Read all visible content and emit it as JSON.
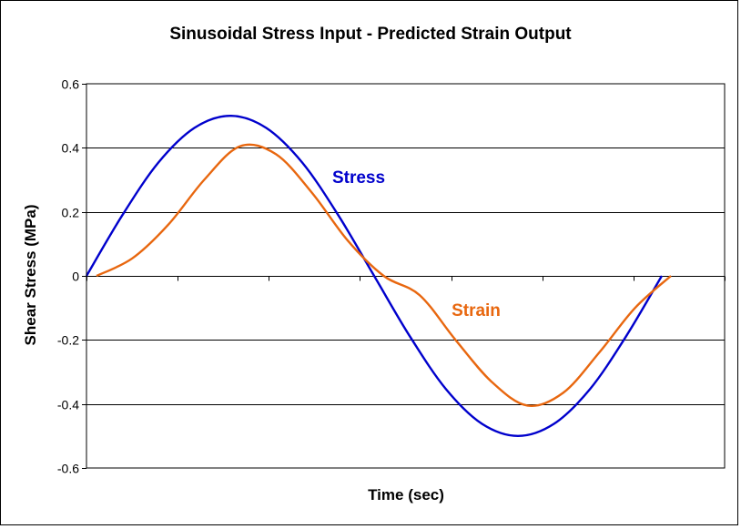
{
  "chart_data": {
    "type": "line",
    "title": "Sinusoidal Stress Input - Predicted Strain Output",
    "xlabel": "Time (sec)",
    "ylabel": "Shear Stress (MPa)",
    "ylim": [
      -0.6,
      0.6
    ],
    "yticks": [
      0.6,
      0.4,
      0.2,
      0,
      -0.2,
      -0.4,
      -0.6
    ],
    "ytick_labels": [
      "0.6",
      "0.4",
      "0.2",
      "0",
      "-0.2",
      "-0.4",
      "-0.6"
    ],
    "x_tick_count": 7,
    "grid": "horizontal",
    "x": [
      0,
      0.0625,
      0.125,
      0.1875,
      0.25,
      0.3125,
      0.375,
      0.4375,
      0.5,
      0.5625,
      0.625,
      0.6875,
      0.75,
      0.8125,
      0.875,
      0.9375,
      1.0
    ],
    "series": [
      {
        "name": "Stress",
        "color": "#0000CC",
        "values": [
          0,
          0.19,
          0.354,
          0.462,
          0.5,
          0.462,
          0.354,
          0.19,
          0,
          -0.19,
          -0.354,
          -0.462,
          -0.5,
          -0.462,
          -0.354,
          -0.19,
          0
        ]
      },
      {
        "name": "Strain",
        "color": "#E8670F",
        "values": [
          0,
          0.055,
          0.16,
          0.3,
          0.405,
          0.38,
          0.26,
          0.11,
          0,
          -0.06,
          -0.2,
          -0.33,
          -0.405,
          -0.365,
          -0.24,
          -0.1,
          0
        ]
      }
    ]
  }
}
